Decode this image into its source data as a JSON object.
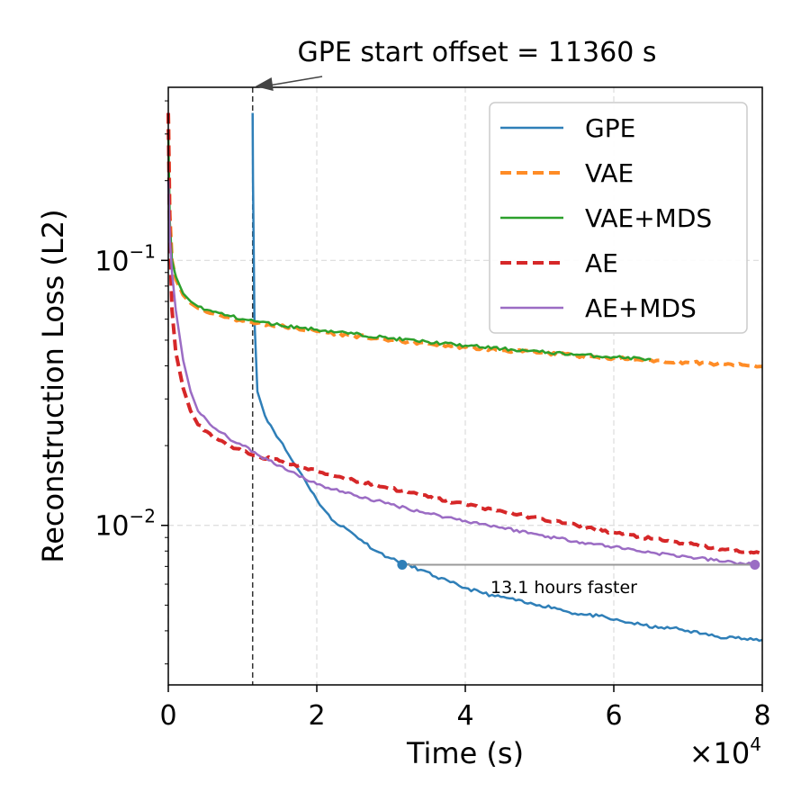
{
  "chart_data": {
    "type": "line",
    "title": "",
    "xlabel": "Time (s)",
    "ylabel": "Reconstruction Loss (L2)",
    "x_multiplier_label": "×10",
    "x_multiplier_exponent": "4",
    "xlim": [
      0,
      80000
    ],
    "ylim": [
      0.0025,
      0.45
    ],
    "yscale": "log",
    "grid": true,
    "legend_position": "top-right",
    "x_ticks": [
      {
        "value": 0,
        "label": "0"
      },
      {
        "value": 20000,
        "label": "2"
      },
      {
        "value": 40000,
        "label": "4"
      },
      {
        "value": 60000,
        "label": "6"
      },
      {
        "value": 80000,
        "label": "8"
      }
    ],
    "y_ticks": [
      {
        "value": 0.01,
        "base": "10",
        "exp": "−2"
      },
      {
        "value": 0.1,
        "base": "10",
        "exp": "−1"
      }
    ],
    "series": [
      {
        "name": "GPE",
        "color": "#2f7fb8",
        "dash": "solid",
        "width": 2.5,
        "x": [
          11360,
          11400,
          11600,
          12000,
          13000,
          15000,
          17000,
          18000,
          20000,
          22000,
          24000,
          26000,
          28000,
          30000,
          32000,
          34000,
          36000,
          38000,
          40000,
          42000,
          44000,
          46000,
          48000,
          50000,
          52000,
          54000,
          56000,
          58000,
          60000,
          62000,
          64000,
          66000,
          68000,
          70000,
          72000,
          74000,
          76000,
          78000,
          80000
        ],
        "y": [
          0.36,
          0.2,
          0.06,
          0.032,
          0.026,
          0.021,
          0.017,
          0.0155,
          0.0125,
          0.0105,
          0.0097,
          0.0088,
          0.008,
          0.0075,
          0.0071,
          0.0068,
          0.0064,
          0.0061,
          0.0058,
          0.0056,
          0.0054,
          0.0053,
          0.0051,
          0.005,
          0.0049,
          0.0047,
          0.0046,
          0.00455,
          0.0044,
          0.0043,
          0.0042,
          0.0041,
          0.0041,
          0.004,
          0.0039,
          0.0038,
          0.0038,
          0.0037,
          0.0037
        ]
      },
      {
        "name": "VAE",
        "color": "#ff8c26",
        "dash": "dashed",
        "width": 4,
        "x": [
          0,
          200,
          500,
          1000,
          2000,
          3000,
          4000,
          6000,
          8000,
          10000,
          12000,
          15000,
          20000,
          25000,
          30000,
          35000,
          40000,
          45000,
          50000,
          55000,
          60000,
          65000,
          70000,
          75000,
          80000
        ],
        "y": [
          0.36,
          0.15,
          0.1,
          0.085,
          0.074,
          0.069,
          0.066,
          0.063,
          0.061,
          0.059,
          0.058,
          0.0565,
          0.054,
          0.052,
          0.05,
          0.0485,
          0.047,
          0.0458,
          0.0448,
          0.0437,
          0.0428,
          0.042,
          0.0412,
          0.0405,
          0.0398
        ]
      },
      {
        "name": "VAE+MDS",
        "color": "#2ca02c",
        "dash": "solid",
        "width": 2.5,
        "x": [
          0,
          200,
          500,
          1000,
          2000,
          3000,
          4000,
          6000,
          8000,
          10000,
          12000,
          15000,
          20000,
          25000,
          30000,
          35000,
          40000,
          45000,
          50000,
          55000,
          60000,
          65000
        ],
        "y": [
          0.3,
          0.14,
          0.1,
          0.087,
          0.075,
          0.07,
          0.067,
          0.064,
          0.062,
          0.06,
          0.0588,
          0.057,
          0.0548,
          0.0528,
          0.0508,
          0.0492,
          0.0477,
          0.0464,
          0.0452,
          0.0441,
          0.0432,
          0.0424
        ]
      },
      {
        "name": "AE",
        "color": "#d62728",
        "dash": "dashed",
        "width": 4,
        "x": [
          0,
          200,
          500,
          1000,
          2000,
          3000,
          4000,
          6000,
          8000,
          10000,
          12000,
          15000,
          20000,
          25000,
          30000,
          35000,
          40000,
          45000,
          50000,
          55000,
          60000,
          65000,
          70000,
          75000,
          80000
        ],
        "y": [
          0.36,
          0.12,
          0.065,
          0.045,
          0.033,
          0.027,
          0.024,
          0.0215,
          0.02,
          0.019,
          0.0183,
          0.0175,
          0.016,
          0.0148,
          0.0138,
          0.0128,
          0.012,
          0.0113,
          0.0106,
          0.01,
          0.0094,
          0.0089,
          0.0085,
          0.0081,
          0.0078
        ]
      },
      {
        "name": "AE+MDS",
        "color": "#9b6cc4",
        "dash": "solid",
        "width": 2.5,
        "x": [
          0,
          200,
          500,
          1000,
          2000,
          3000,
          4000,
          6000,
          8000,
          10000,
          12000,
          15000,
          20000,
          25000,
          30000,
          35000,
          40000,
          45000,
          50000,
          55000,
          60000,
          65000,
          70000,
          75000,
          79000
        ],
        "y": [
          0.2,
          0.12,
          0.09,
          0.065,
          0.042,
          0.032,
          0.027,
          0.0235,
          0.0215,
          0.02,
          0.0185,
          0.0168,
          0.0143,
          0.013,
          0.012,
          0.0111,
          0.0104,
          0.0098,
          0.0092,
          0.0087,
          0.0083,
          0.0079,
          0.0076,
          0.0073,
          0.0071
        ]
      }
    ],
    "annotations": {
      "offset_text": "GPE start offset = 11360 s",
      "offset_x": 11360,
      "faster_text": "13.1 hours faster",
      "faster_start_x": 31500,
      "faster_end_x": 79000,
      "faster_y": 0.0071,
      "start_marker_color": "#2f7fb8",
      "end_marker_color": "#9b6cc4",
      "connector_color": "#999999"
    }
  }
}
